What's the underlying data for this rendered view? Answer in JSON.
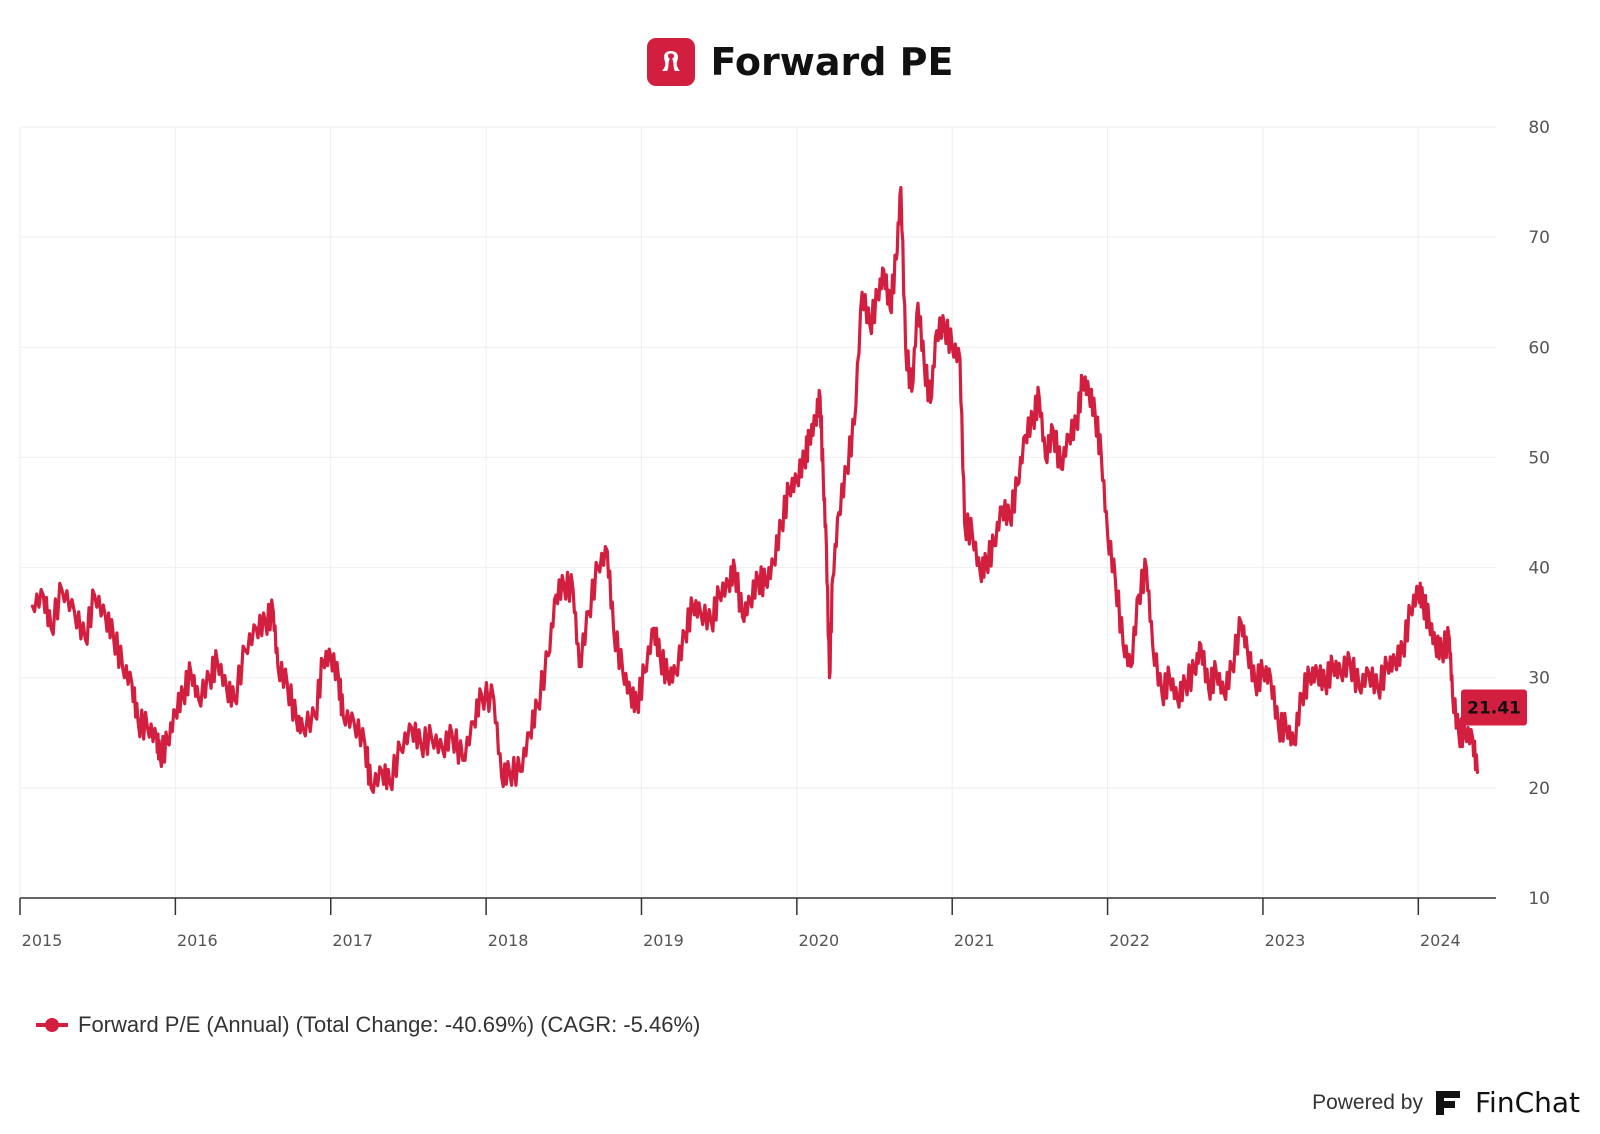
{
  "header": {
    "title": "Forward PE",
    "logo_icon": "lululemon-logo-icon",
    "brand_color": "#d31f3f"
  },
  "chart_data": {
    "type": "line",
    "title": "Forward PE",
    "xlabel": "",
    "ylabel": "",
    "xlim": [
      2015.0,
      2024.5
    ],
    "ylim": [
      10,
      80
    ],
    "y_ticks": [
      80,
      70,
      60,
      50,
      40,
      30,
      20,
      10
    ],
    "x_ticks": [
      "2015",
      "2016",
      "2017",
      "2018",
      "2019",
      "2020",
      "2021",
      "2022",
      "2023",
      "2024"
    ],
    "grid": true,
    "legend_position": "bottom-left",
    "last_value_label": "21.41",
    "series": [
      {
        "name": "Forward P/E (Annual) (Total Change: -40.69%) (CAGR: -5.46%)",
        "color": "#d31f3f",
        "points": [
          [
            2015.08,
            36.5
          ],
          [
            2015.15,
            37.5
          ],
          [
            2015.2,
            34.5
          ],
          [
            2015.27,
            38.0
          ],
          [
            2015.35,
            36.0
          ],
          [
            2015.42,
            33.5
          ],
          [
            2015.48,
            37.5
          ],
          [
            2015.55,
            35.5
          ],
          [
            2015.6,
            34.0
          ],
          [
            2015.66,
            31.0
          ],
          [
            2015.72,
            29.5
          ],
          [
            2015.76,
            26.0
          ],
          [
            2015.82,
            25.5
          ],
          [
            2015.88,
            24.5
          ],
          [
            2015.9,
            23.0
          ],
          [
            2015.95,
            24.0
          ],
          [
            2016.0,
            27.0
          ],
          [
            2016.05,
            28.5
          ],
          [
            2016.1,
            30.5
          ],
          [
            2016.15,
            28.0
          ],
          [
            2016.22,
            30.0
          ],
          [
            2016.27,
            31.5
          ],
          [
            2016.33,
            29.0
          ],
          [
            2016.38,
            28.0
          ],
          [
            2016.45,
            32.5
          ],
          [
            2016.52,
            34.5
          ],
          [
            2016.58,
            35.0
          ],
          [
            2016.63,
            36.0
          ],
          [
            2016.66,
            31.0
          ],
          [
            2016.72,
            29.5
          ],
          [
            2016.78,
            26.0
          ],
          [
            2016.82,
            25.5
          ],
          [
            2016.9,
            26.5
          ],
          [
            2016.95,
            31.5
          ],
          [
            2017.0,
            32.0
          ],
          [
            2017.05,
            30.0
          ],
          [
            2017.08,
            26.5
          ],
          [
            2017.15,
            26.0
          ],
          [
            2017.22,
            24.0
          ],
          [
            2017.26,
            20.0
          ],
          [
            2017.33,
            21.5
          ],
          [
            2017.38,
            20.5
          ],
          [
            2017.45,
            23.5
          ],
          [
            2017.52,
            25.5
          ],
          [
            2017.58,
            24.0
          ],
          [
            2017.65,
            24.5
          ],
          [
            2017.72,
            23.5
          ],
          [
            2017.78,
            25.0
          ],
          [
            2017.85,
            22.5
          ],
          [
            2017.92,
            26.0
          ],
          [
            2017.97,
            28.5
          ],
          [
            2018.05,
            28.0
          ],
          [
            2018.1,
            21.0
          ],
          [
            2018.15,
            21.5
          ],
          [
            2018.22,
            21.5
          ],
          [
            2018.28,
            25.0
          ],
          [
            2018.33,
            27.5
          ],
          [
            2018.4,
            32.0
          ],
          [
            2018.45,
            37.5
          ],
          [
            2018.5,
            38.5
          ],
          [
            2018.56,
            38.0
          ],
          [
            2018.6,
            31.0
          ],
          [
            2018.66,
            36.0
          ],
          [
            2018.72,
            40.0
          ],
          [
            2018.78,
            41.5
          ],
          [
            2018.82,
            34.5
          ],
          [
            2018.88,
            30.5
          ],
          [
            2018.93,
            28.5
          ],
          [
            2018.97,
            27.5
          ],
          [
            2019.02,
            30.5
          ],
          [
            2019.08,
            34.5
          ],
          [
            2019.12,
            32.0
          ],
          [
            2019.17,
            30.0
          ],
          [
            2019.22,
            30.5
          ],
          [
            2019.28,
            34.0
          ],
          [
            2019.33,
            36.5
          ],
          [
            2019.38,
            36.0
          ],
          [
            2019.45,
            35.0
          ],
          [
            2019.5,
            37.5
          ],
          [
            2019.56,
            38.5
          ],
          [
            2019.6,
            40.0
          ],
          [
            2019.65,
            35.5
          ],
          [
            2019.7,
            37.0
          ],
          [
            2019.75,
            39.0
          ],
          [
            2019.8,
            38.5
          ],
          [
            2019.85,
            40.5
          ],
          [
            2019.9,
            44.0
          ],
          [
            2019.95,
            47.0
          ],
          [
            2020.0,
            48.0
          ],
          [
            2020.05,
            50.0
          ],
          [
            2020.08,
            51.5
          ],
          [
            2020.12,
            53.5
          ],
          [
            2020.15,
            55.5
          ],
          [
            2020.17,
            48.0
          ],
          [
            2020.19,
            42.0
          ],
          [
            2020.21,
            30.0
          ],
          [
            2020.23,
            39.0
          ],
          [
            2020.27,
            45.0
          ],
          [
            2020.32,
            49.0
          ],
          [
            2020.37,
            53.0
          ],
          [
            2020.42,
            65.0
          ],
          [
            2020.47,
            62.0
          ],
          [
            2020.52,
            64.5
          ],
          [
            2020.56,
            67.0
          ],
          [
            2020.6,
            63.5
          ],
          [
            2020.64,
            68.0
          ],
          [
            2020.67,
            74.5
          ],
          [
            2020.7,
            60.0
          ],
          [
            2020.74,
            56.0
          ],
          [
            2020.78,
            64.0
          ],
          [
            2020.82,
            58.5
          ],
          [
            2020.86,
            55.0
          ],
          [
            2020.9,
            61.5
          ],
          [
            2020.95,
            62.0
          ],
          [
            2021.0,
            60.0
          ],
          [
            2021.05,
            59.0
          ],
          [
            2021.08,
            44.0
          ],
          [
            2021.13,
            43.0
          ],
          [
            2021.18,
            39.5
          ],
          [
            2021.22,
            40.5
          ],
          [
            2021.27,
            42.0
          ],
          [
            2021.32,
            45.5
          ],
          [
            2021.37,
            44.5
          ],
          [
            2021.42,
            47.5
          ],
          [
            2021.47,
            52.0
          ],
          [
            2021.52,
            53.5
          ],
          [
            2021.56,
            55.5
          ],
          [
            2021.6,
            50.0
          ],
          [
            2021.65,
            52.5
          ],
          [
            2021.7,
            49.0
          ],
          [
            2021.75,
            52.0
          ],
          [
            2021.8,
            53.0
          ],
          [
            2021.84,
            57.0
          ],
          [
            2021.88,
            56.0
          ],
          [
            2021.92,
            54.0
          ],
          [
            2021.96,
            50.0
          ],
          [
            2022.0,
            43.0
          ],
          [
            2022.05,
            39.0
          ],
          [
            2022.1,
            33.0
          ],
          [
            2022.15,
            31.0
          ],
          [
            2022.2,
            37.5
          ],
          [
            2022.25,
            40.0
          ],
          [
            2022.29,
            33.0
          ],
          [
            2022.35,
            28.5
          ],
          [
            2022.4,
            30.0
          ],
          [
            2022.45,
            28.0
          ],
          [
            2022.5,
            29.5
          ],
          [
            2022.56,
            30.5
          ],
          [
            2022.6,
            33.0
          ],
          [
            2022.65,
            29.0
          ],
          [
            2022.7,
            30.5
          ],
          [
            2022.75,
            28.5
          ],
          [
            2022.8,
            31.0
          ],
          [
            2022.86,
            35.0
          ],
          [
            2022.9,
            32.5
          ],
          [
            2022.95,
            29.5
          ],
          [
            2023.0,
            30.5
          ],
          [
            2023.05,
            30.0
          ],
          [
            2023.1,
            25.5
          ],
          [
            2023.15,
            25.5
          ],
          [
            2023.2,
            24.0
          ],
          [
            2023.25,
            28.5
          ],
          [
            2023.3,
            30.0
          ],
          [
            2023.35,
            30.5
          ],
          [
            2023.4,
            29.5
          ],
          [
            2023.45,
            31.0
          ],
          [
            2023.5,
            30.5
          ],
          [
            2023.56,
            31.5
          ],
          [
            2023.62,
            29.0
          ],
          [
            2023.68,
            30.5
          ],
          [
            2023.74,
            29.0
          ],
          [
            2023.8,
            31.0
          ],
          [
            2023.85,
            31.5
          ],
          [
            2023.9,
            32.5
          ],
          [
            2023.95,
            36.0
          ],
          [
            2024.0,
            38.0
          ],
          [
            2024.03,
            37.0
          ],
          [
            2024.07,
            35.0
          ],
          [
            2024.11,
            33.0
          ],
          [
            2024.15,
            32.5
          ],
          [
            2024.2,
            33.5
          ],
          [
            2024.22,
            28.5
          ],
          [
            2024.26,
            25.0
          ],
          [
            2024.3,
            25.0
          ],
          [
            2024.35,
            24.5
          ],
          [
            2024.38,
            21.4
          ]
        ]
      }
    ]
  },
  "legend": {
    "label": "Forward P/E (Annual) (Total Change: -40.69%) (CAGR: -5.46%)"
  },
  "footer": {
    "powered_by": "Powered by",
    "brand": "FinChat",
    "brand_icon": "finchat-logo-icon"
  }
}
